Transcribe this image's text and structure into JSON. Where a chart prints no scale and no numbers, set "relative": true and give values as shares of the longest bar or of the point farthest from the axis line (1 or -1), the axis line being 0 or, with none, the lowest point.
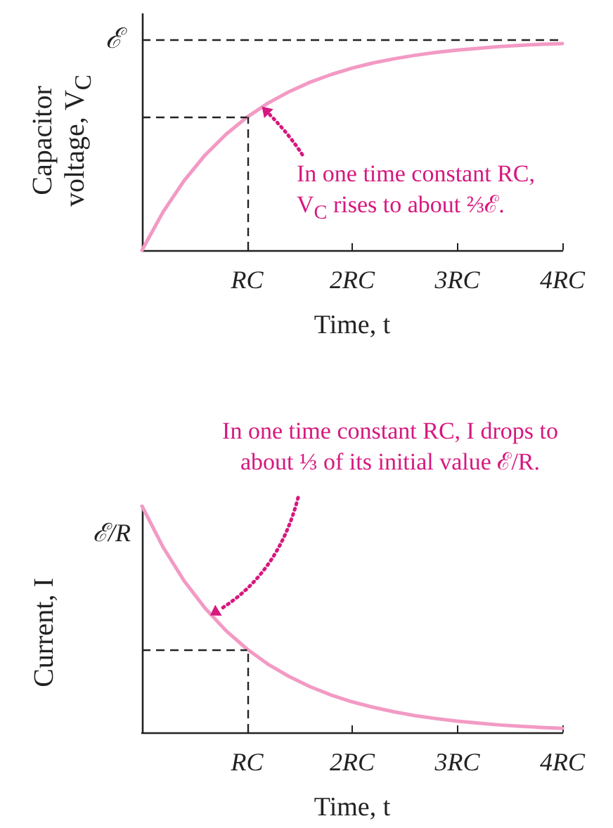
{
  "chart_data": [
    {
      "type": "line",
      "relative": true,
      "xlabel": "Time, t",
      "ylabel": "Capacitor voltage, V$_{C}$",
      "xlim": [
        0,
        4
      ],
      "xticks": [
        {
          "value": 1,
          "label": "RC"
        },
        {
          "value": 2,
          "label": "2RC"
        },
        {
          "value": 3,
          "label": "3RC"
        },
        {
          "value": 4,
          "label": "4RC"
        }
      ],
      "x": [
        0,
        0.2,
        0.4,
        0.6,
        0.8,
        1,
        1.2,
        1.4,
        1.6,
        1.8,
        2,
        2.2,
        2.4,
        2.6,
        2.8,
        3,
        3.2,
        3.4,
        3.6,
        3.8,
        4
      ],
      "series": [
        {
          "color": "#f29ac4",
          "values": [
            0,
            0.185,
            0.336,
            0.46,
            0.561,
            0.644,
            0.712,
            0.767,
            0.813,
            0.85,
            0.881,
            0.906,
            0.926,
            0.943,
            0.957,
            0.968,
            0.977,
            0.985,
            0.991,
            0.996,
            1
          ]
        }
      ],
      "ref_lines": [
        {
          "axis": "y",
          "value": 1.02,
          "label": "ℰ",
          "line_style": "dashed"
        },
        {
          "axis": "y",
          "value": 0.644,
          "line_style": "dashed"
        },
        {
          "axis": "x",
          "value": 1,
          "line_style": "dashed"
        }
      ],
      "annotations": [
        {
          "text": "In one time constant RC, V$_{C}$ rises to about ⅔ℰ.",
          "x": 1.15,
          "y": 0.69
        }
      ]
    },
    {
      "type": "line",
      "relative": true,
      "xlabel": "Time, t",
      "ylabel": "Current, I",
      "xlim": [
        0,
        4
      ],
      "xticks": [
        {
          "value": 1,
          "label": "RC"
        },
        {
          "value": 2,
          "label": "2RC"
        },
        {
          "value": 3,
          "label": "3RC"
        },
        {
          "value": 4,
          "label": "4RC"
        }
      ],
      "x": [
        0,
        0.2,
        0.4,
        0.6,
        0.8,
        1,
        1.2,
        1.4,
        1.6,
        1.8,
        2,
        2.2,
        2.4,
        2.6,
        2.8,
        3,
        3.2,
        3.4,
        3.6,
        3.8,
        4
      ],
      "series": [
        {
          "color": "#f29ac4",
          "values": [
            1,
            0.819,
            0.67,
            0.549,
            0.449,
            0.368,
            0.301,
            0.247,
            0.202,
            0.165,
            0.135,
            0.111,
            0.091,
            0.074,
            0.061,
            0.05,
            0.041,
            0.033,
            0.027,
            0.022,
            0.018
          ]
        }
      ],
      "ref_lines": [
        {
          "axis": "y",
          "value": 0.368,
          "line_style": "dashed"
        },
        {
          "axis": "x",
          "value": 1,
          "line_style": "dashed"
        }
      ],
      "annotations": [
        {
          "text": "In one time constant RC, I drops to about ⅓ of its initial value ℰ/R.",
          "x": 0.66,
          "y": 0.52
        },
        {
          "text": "ℰ/R",
          "x": 0,
          "y": 1
        }
      ]
    }
  ]
}
